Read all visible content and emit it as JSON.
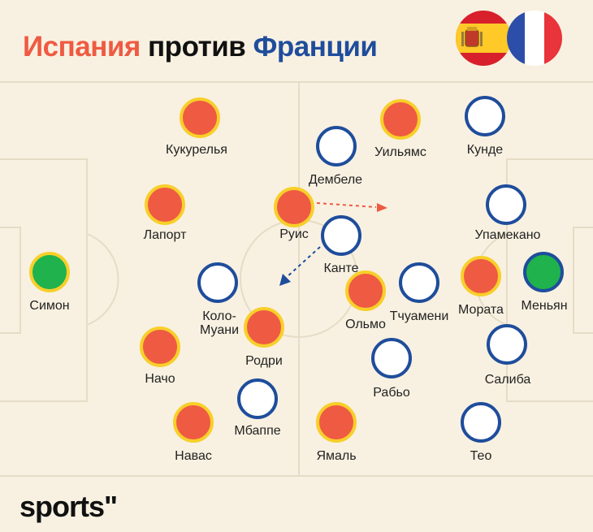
{
  "title": {
    "part1": "Испания",
    "part2": "против",
    "part3": "Франции"
  },
  "logo": "sports\"",
  "colors": {
    "spain": "#ef5a42",
    "spain_border": "#f8cf2a",
    "france": "#1f4d9c",
    "goalkeeper": "#1fb24d",
    "background": "#f8f1e1",
    "lines": "#e6dcc6"
  },
  "flags": [
    "spain-flag-icon",
    "france-flag-icon"
  ],
  "players": [
    {
      "name": "Кукурелья",
      "team": "es"
    },
    {
      "name": "Лапорт",
      "team": "es"
    },
    {
      "name": "Симон",
      "team": "es-gk"
    },
    {
      "name": "Руис",
      "team": "es"
    },
    {
      "name": "Коло-\nМуани",
      "team": "fr"
    },
    {
      "name": "Родри",
      "team": "es"
    },
    {
      "name": "Начо",
      "team": "es"
    },
    {
      "name": "Навас",
      "team": "es"
    },
    {
      "name": "Мбаппе",
      "team": "fr"
    },
    {
      "name": "Дембеле",
      "team": "fr"
    },
    {
      "name": "Уильямс",
      "team": "es"
    },
    {
      "name": "Кунде",
      "team": "fr"
    },
    {
      "name": "Канте",
      "team": "fr"
    },
    {
      "name": "Ольмо",
      "team": "es"
    },
    {
      "name": "Тчуамени",
      "team": "fr"
    },
    {
      "name": "Рабьо",
      "team": "fr"
    },
    {
      "name": "Ямаль",
      "team": "es"
    },
    {
      "name": "Упамекано",
      "team": "fr"
    },
    {
      "name": "Мората",
      "team": "es"
    },
    {
      "name": "Меньян",
      "team": "fr-gk"
    },
    {
      "name": "Салиба",
      "team": "fr"
    },
    {
      "name": "Тео",
      "team": "fr"
    }
  ]
}
